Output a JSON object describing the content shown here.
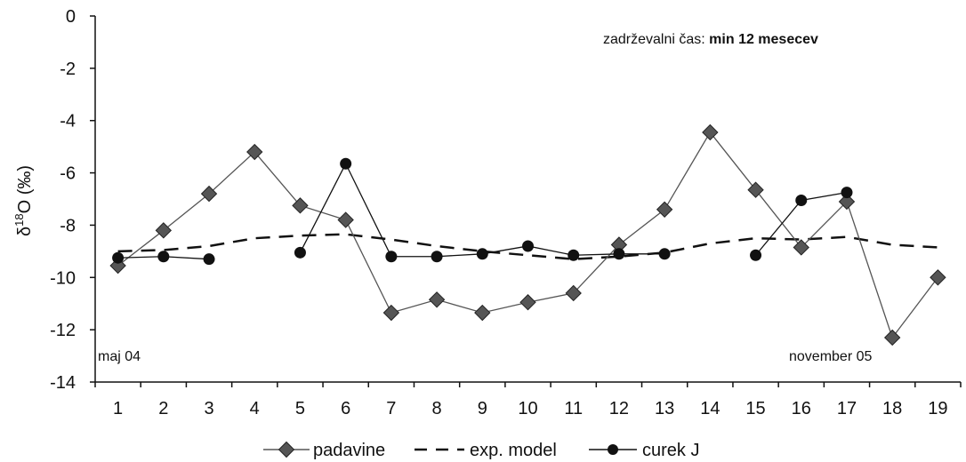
{
  "chart_data": {
    "type": "line",
    "title": "",
    "ylabel": {
      "symbol": "δ",
      "sup": "18",
      "rest": "O (‰)"
    },
    "xlabel": "",
    "categories": [
      "1",
      "2",
      "3",
      "4",
      "5",
      "6",
      "7",
      "8",
      "9",
      "10",
      "11",
      "12",
      "13",
      "14",
      "15",
      "16",
      "17",
      "18",
      "19"
    ],
    "ylim": [
      -14,
      0
    ],
    "yticks": [
      0,
      -2,
      -4,
      -6,
      -8,
      -10,
      -12,
      -14
    ],
    "grid": false,
    "legend_placement": "bottom",
    "series": [
      {
        "name": "padavine",
        "style": "line-diamond",
        "color": "#555555",
        "values": [
          -9.55,
          -8.2,
          -6.8,
          -5.2,
          -7.25,
          -7.8,
          -11.35,
          -10.85,
          -11.35,
          -10.95,
          -10.6,
          -8.75,
          -7.4,
          -4.45,
          -6.65,
          -8.85,
          -7.1,
          -12.3,
          -10.0
        ]
      },
      {
        "name": "exp. model",
        "style": "dashed",
        "color": "#111111",
        "values": [
          -9.0,
          -8.95,
          -8.8,
          -8.5,
          -8.4,
          -8.35,
          -8.55,
          -8.8,
          -9.0,
          -9.15,
          -9.3,
          -9.2,
          -9.05,
          -8.7,
          -8.5,
          -8.55,
          -8.45,
          -8.75,
          -8.85
        ]
      },
      {
        "name": "curek J",
        "style": "line-circle",
        "color": "#111111",
        "values": [
          -9.25,
          -9.2,
          -9.3,
          null,
          -9.05,
          -5.65,
          -9.2,
          -9.2,
          -9.1,
          -8.8,
          -9.15,
          -9.1,
          -9.1,
          null,
          -9.15,
          -7.05,
          -6.75,
          null,
          null
        ]
      }
    ],
    "annotations": {
      "retention_prefix": "zadrževalni čas: ",
      "retention_value": "min 12 mesecev",
      "start_label": "maj 04",
      "end_label": "november 05"
    }
  }
}
